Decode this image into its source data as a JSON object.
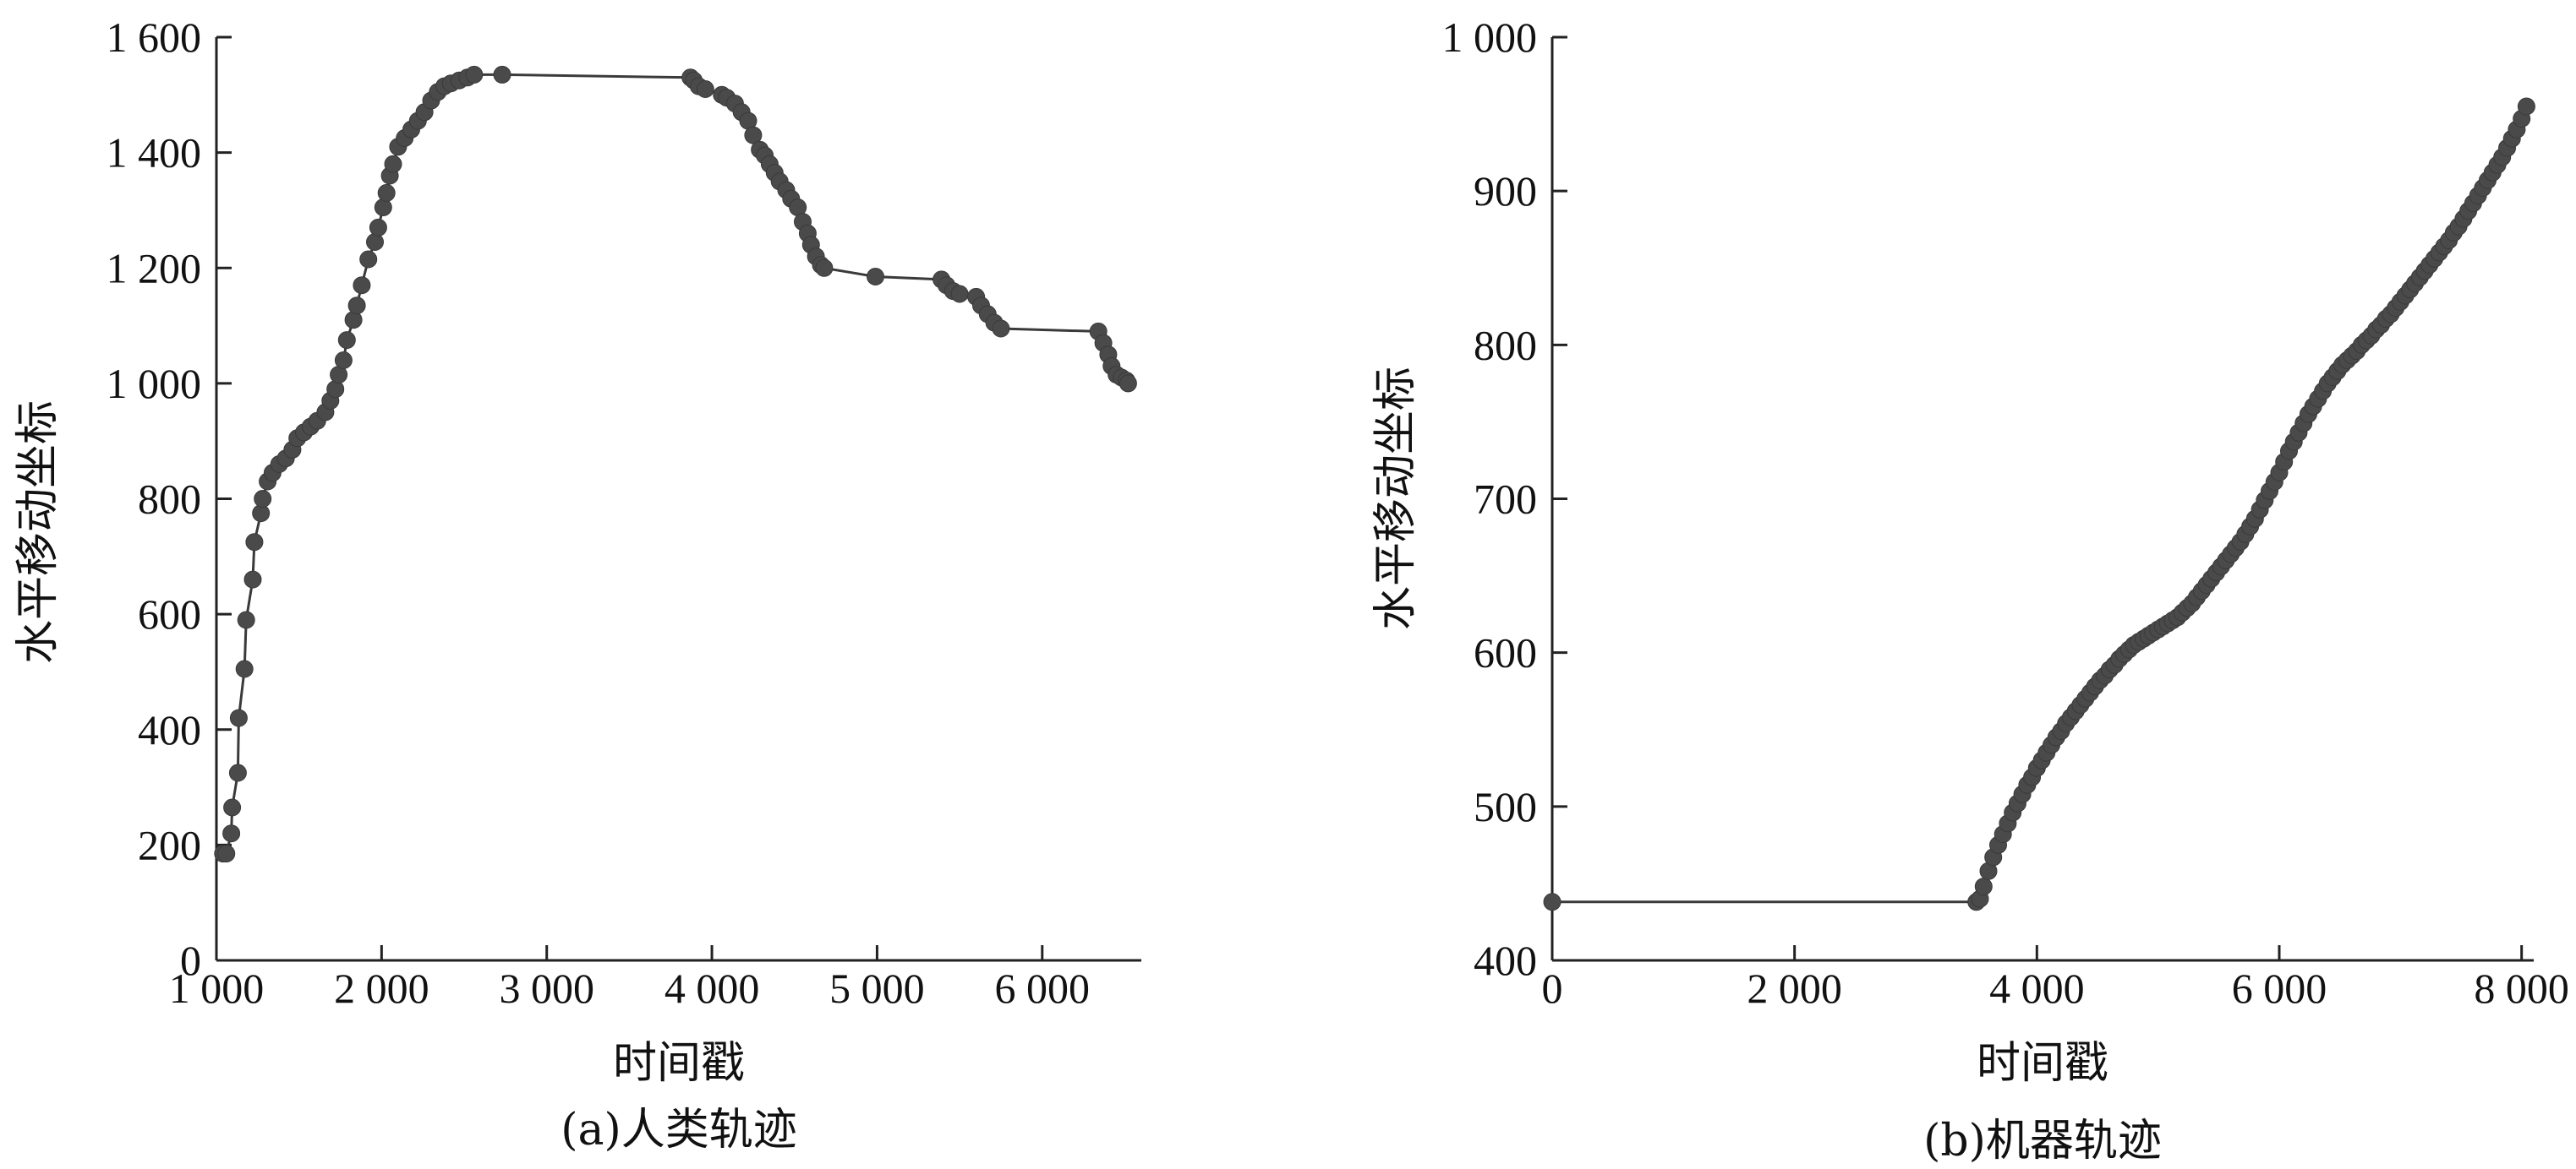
{
  "chart_data": [
    {
      "type": "line",
      "caption": "(a)人类轨迹",
      "xlabel": "时间戳",
      "ylabel": "水平移动坐标",
      "xlim": [
        1000,
        6600
      ],
      "ylim": [
        0,
        1600
      ],
      "xticks": [
        1000,
        2000,
        3000,
        4000,
        5000,
        6000
      ],
      "xtick_labels": [
        "1 000",
        "2 000",
        "3 000",
        "4 000",
        "5 000",
        "6 000"
      ],
      "yticks": [
        0,
        200,
        400,
        600,
        800,
        1000,
        1200,
        1400,
        1600
      ],
      "ytick_labels": [
        "0",
        "200",
        "400",
        "600",
        "800",
        "1 000",
        "1 200",
        "1 400",
        "1 600"
      ],
      "markers": true,
      "color": "#4a4a4a",
      "points": [
        [
          1040,
          185
        ],
        [
          1060,
          185
        ],
        [
          1090,
          220
        ],
        [
          1095,
          265
        ],
        [
          1130,
          325
        ],
        [
          1135,
          420
        ],
        [
          1170,
          505
        ],
        [
          1180,
          590
        ],
        [
          1220,
          660
        ],
        [
          1230,
          725
        ],
        [
          1270,
          775
        ],
        [
          1280,
          800
        ],
        [
          1310,
          830
        ],
        [
          1340,
          845
        ],
        [
          1380,
          860
        ],
        [
          1420,
          870
        ],
        [
          1460,
          885
        ],
        [
          1490,
          905
        ],
        [
          1530,
          915
        ],
        [
          1570,
          925
        ],
        [
          1610,
          935
        ],
        [
          1660,
          950
        ],
        [
          1690,
          970
        ],
        [
          1720,
          990
        ],
        [
          1740,
          1015
        ],
        [
          1770,
          1040
        ],
        [
          1790,
          1075
        ],
        [
          1830,
          1110
        ],
        [
          1850,
          1135
        ],
        [
          1880,
          1170
        ],
        [
          1920,
          1215
        ],
        [
          1960,
          1245
        ],
        [
          1980,
          1270
        ],
        [
          2010,
          1305
        ],
        [
          2030,
          1330
        ],
        [
          2050,
          1360
        ],
        [
          2070,
          1380
        ],
        [
          2100,
          1410
        ],
        [
          2140,
          1425
        ],
        [
          2180,
          1440
        ],
        [
          2220,
          1455
        ],
        [
          2260,
          1470
        ],
        [
          2300,
          1490
        ],
        [
          2340,
          1505
        ],
        [
          2380,
          1515
        ],
        [
          2420,
          1520
        ],
        [
          2470,
          1525
        ],
        [
          2520,
          1530
        ],
        [
          2560,
          1535
        ],
        [
          2730,
          1535
        ],
        [
          3870,
          1530
        ],
        [
          3890,
          1525
        ],
        [
          3920,
          1515
        ],
        [
          3960,
          1510
        ],
        [
          4060,
          1500
        ],
        [
          4090,
          1495
        ],
        [
          4140,
          1485
        ],
        [
          4180,
          1470
        ],
        [
          4220,
          1455
        ],
        [
          4250,
          1430
        ],
        [
          4290,
          1405
        ],
        [
          4320,
          1395
        ],
        [
          4350,
          1380
        ],
        [
          4380,
          1365
        ],
        [
          4410,
          1350
        ],
        [
          4450,
          1335
        ],
        [
          4480,
          1320
        ],
        [
          4520,
          1305
        ],
        [
          4550,
          1280
        ],
        [
          4580,
          1260
        ],
        [
          4600,
          1240
        ],
        [
          4630,
          1220
        ],
        [
          4660,
          1205
        ],
        [
          4680,
          1200
        ],
        [
          4990,
          1185
        ],
        [
          5390,
          1180
        ],
        [
          5420,
          1170
        ],
        [
          5460,
          1160
        ],
        [
          5500,
          1155
        ],
        [
          5600,
          1150
        ],
        [
          5630,
          1135
        ],
        [
          5670,
          1120
        ],
        [
          5710,
          1105
        ],
        [
          5750,
          1095
        ],
        [
          6340,
          1090
        ],
        [
          6370,
          1070
        ],
        [
          6400,
          1050
        ],
        [
          6420,
          1030
        ],
        [
          6450,
          1015
        ],
        [
          6480,
          1010
        ],
        [
          6510,
          1005
        ],
        [
          6520,
          1000
        ]
      ]
    },
    {
      "type": "line",
      "caption": "(b)机器轨迹",
      "xlabel": "时间戳",
      "ylabel": "水平移动坐标",
      "xlim": [
        0,
        8100
      ],
      "ylim": [
        400,
        1000
      ],
      "xticks": [
        0,
        2000,
        4000,
        6000,
        8000
      ],
      "xtick_labels": [
        "0",
        "2 000",
        "4 000",
        "6 000",
        "8 000"
      ],
      "yticks": [
        400,
        500,
        600,
        700,
        800,
        900,
        1000
      ],
      "ytick_labels": [
        "400",
        "500",
        "600",
        "700",
        "800",
        "900",
        "1 000"
      ],
      "markers": true,
      "color": "#4a4a4a",
      "points": [
        [
          0,
          438
        ],
        [
          3500,
          438
        ],
        [
          3530,
          440
        ],
        [
          3560,
          448
        ],
        [
          3600,
          458
        ],
        [
          3640,
          467
        ],
        [
          3680,
          475
        ],
        [
          3720,
          482
        ],
        [
          3760,
          489
        ],
        [
          3800,
          496
        ],
        [
          3840,
          502
        ],
        [
          3880,
          508
        ],
        [
          3920,
          514
        ],
        [
          3960,
          519
        ],
        [
          4000,
          525
        ],
        [
          4040,
          530
        ],
        [
          4080,
          535
        ],
        [
          4120,
          540
        ],
        [
          4160,
          545
        ],
        [
          4200,
          549
        ],
        [
          4240,
          554
        ],
        [
          4280,
          558
        ],
        [
          4320,
          562
        ],
        [
          4360,
          566
        ],
        [
          4400,
          570
        ],
        [
          4440,
          574
        ],
        [
          4480,
          578
        ],
        [
          4520,
          582
        ],
        [
          4560,
          585
        ],
        [
          4600,
          589
        ],
        [
          4640,
          592
        ],
        [
          4680,
          596
        ],
        [
          4720,
          599
        ],
        [
          4760,
          602
        ],
        [
          4800,
          605
        ],
        [
          4840,
          607
        ],
        [
          4880,
          609
        ],
        [
          4920,
          611
        ],
        [
          4960,
          613
        ],
        [
          5000,
          615
        ],
        [
          5040,
          617
        ],
        [
          5080,
          619
        ],
        [
          5120,
          621
        ],
        [
          5160,
          623
        ],
        [
          5200,
          626
        ],
        [
          5240,
          629
        ],
        [
          5280,
          632
        ],
        [
          5320,
          636
        ],
        [
          5360,
          640
        ],
        [
          5400,
          644
        ],
        [
          5440,
          648
        ],
        [
          5480,
          652
        ],
        [
          5520,
          656
        ],
        [
          5560,
          660
        ],
        [
          5600,
          664
        ],
        [
          5640,
          668
        ],
        [
          5680,
          672
        ],
        [
          5720,
          677
        ],
        [
          5760,
          682
        ],
        [
          5800,
          687
        ],
        [
          5840,
          693
        ],
        [
          5880,
          699
        ],
        [
          5920,
          705
        ],
        [
          5960,
          711
        ],
        [
          6000,
          717
        ],
        [
          6040,
          724
        ],
        [
          6080,
          731
        ],
        [
          6120,
          737
        ],
        [
          6160,
          743
        ],
        [
          6200,
          749
        ],
        [
          6240,
          755
        ],
        [
          6280,
          760
        ],
        [
          6320,
          765
        ],
        [
          6360,
          770
        ],
        [
          6400,
          775
        ],
        [
          6440,
          779
        ],
        [
          6480,
          783
        ],
        [
          6520,
          787
        ],
        [
          6560,
          790
        ],
        [
          6600,
          793
        ],
        [
          6640,
          796
        ],
        [
          6680,
          800
        ],
        [
          6720,
          803
        ],
        [
          6760,
          806
        ],
        [
          6800,
          810
        ],
        [
          6840,
          813
        ],
        [
          6880,
          817
        ],
        [
          6920,
          820
        ],
        [
          6960,
          824
        ],
        [
          7000,
          828
        ],
        [
          7040,
          832
        ],
        [
          7080,
          836
        ],
        [
          7120,
          840
        ],
        [
          7160,
          844
        ],
        [
          7200,
          848
        ],
        [
          7240,
          852
        ],
        [
          7280,
          856
        ],
        [
          7320,
          860
        ],
        [
          7360,
          864
        ],
        [
          7400,
          868
        ],
        [
          7440,
          873
        ],
        [
          7480,
          877
        ],
        [
          7520,
          882
        ],
        [
          7560,
          887
        ],
        [
          7600,
          892
        ],
        [
          7640,
          897
        ],
        [
          7680,
          902
        ],
        [
          7720,
          907
        ],
        [
          7760,
          912
        ],
        [
          7800,
          917
        ],
        [
          7840,
          922
        ],
        [
          7880,
          928
        ],
        [
          7920,
          934
        ],
        [
          7960,
          940
        ],
        [
          8000,
          947
        ],
        [
          8040,
          955
        ]
      ]
    }
  ]
}
